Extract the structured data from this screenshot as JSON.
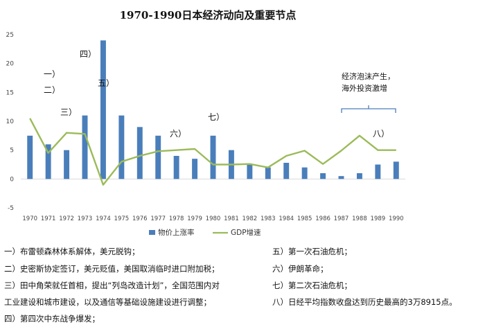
{
  "chart_data": {
    "type": "bar",
    "title": "1970-1990日本经济动向及重要节点",
    "categories": [
      "1970",
      "1971",
      "1972",
      "1973",
      "1974",
      "1975",
      "1976",
      "1977",
      "1978",
      "1979",
      "1980",
      "1981",
      "1982",
      "1983",
      "1984",
      "1985",
      "1986",
      "1987",
      "1988",
      "1989",
      "1990"
    ],
    "series": [
      {
        "name": "物价上涨率",
        "type": "bar",
        "color": "#4a7ebb",
        "values": [
          7.5,
          6.0,
          5.0,
          11.0,
          24.0,
          11.0,
          9.0,
          7.5,
          4.0,
          3.5,
          7.5,
          5.0,
          2.5,
          2.0,
          2.8,
          2.0,
          1.0,
          0.5,
          1.0,
          2.5,
          3.0
        ]
      },
      {
        "name": "GDP增速",
        "type": "line",
        "color": "#9bbb59",
        "values": [
          10.5,
          4.5,
          8.0,
          7.8,
          -1.0,
          3.0,
          4.0,
          4.8,
          5.0,
          5.2,
          2.5,
          2.5,
          2.6,
          2.0,
          4.0,
          4.9,
          2.6,
          4.9,
          7.5,
          5.0,
          5.0
        ]
      }
    ],
    "ylim": [
      -5,
      25
    ],
    "yticks": [
      "-5",
      "0",
      "5",
      "10",
      "15",
      "20",
      "25"
    ],
    "legend": "bottom",
    "annotations": [
      "一）",
      "二）",
      "三）",
      "四）",
      "五）",
      "六）",
      "七）",
      "八）"
    ],
    "note": {
      "lines": [
        "经济泡沫产生，",
        "海外投资激增"
      ]
    }
  },
  "notes": {
    "left": [
      "一）布雷顿森林体系解体，美元脱钩；",
      "二）史密斯协定签订，美元贬值，美国取消临时进口附加税；",
      "三）田中角荣就任首相，提出“列岛改造计划”，全国范围内对",
      "工业建设和城市建设，以及通信等基础设施建设进行调整；",
      "四）第四次中东战争爆发；"
    ],
    "right": [
      "五）第一次石油危机；",
      "六）伊朗革命；",
      "七）第二次石油危机；",
      "八）日经平均指数收盘达到历史最高的3万8915点。"
    ]
  }
}
